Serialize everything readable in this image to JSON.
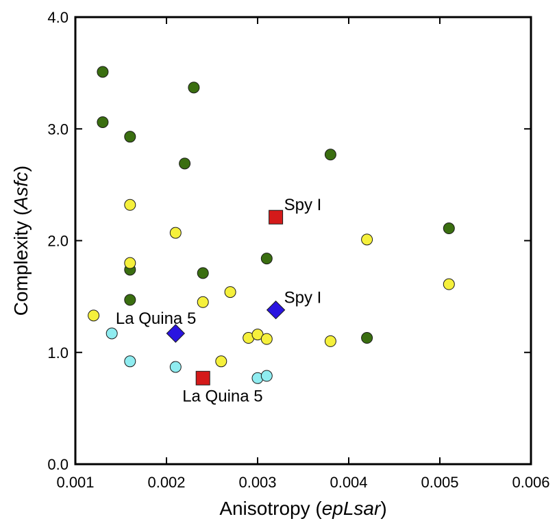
{
  "chart_data": {
    "type": "scatter",
    "xlabel_prefix": "Anisotropy  (",
    "xlabel_italic": "epLsar",
    "xlabel_suffix": ")",
    "ylabel_prefix": "Complexity (",
    "ylabel_italic": "Asfc",
    "ylabel_suffix": ")",
    "xlim": [
      0.001,
      0.006
    ],
    "ylim": [
      0.0,
      4.0
    ],
    "xticks": [
      "0.001",
      "0.002",
      "0.003",
      "0.004",
      "0.005",
      "0.006"
    ],
    "yticks": [
      "0.0",
      "1.0",
      "2.0",
      "3.0",
      "4.0"
    ],
    "grid": false,
    "colors": {
      "green": "#3a6e10",
      "yellow": "#f5f03c",
      "cyan": "#8fecf0",
      "red": "#d41a1a",
      "blue": "#2a14e0"
    },
    "series": [
      {
        "marker": "circle",
        "color": "#3a6e10",
        "points": [
          [
            0.0013,
            3.51
          ],
          [
            0.0013,
            3.06
          ],
          [
            0.0016,
            2.93
          ],
          [
            0.0023,
            3.37
          ],
          [
            0.0022,
            2.69
          ],
          [
            0.0038,
            2.77
          ],
          [
            0.0051,
            2.11
          ],
          [
            0.0031,
            1.84
          ],
          [
            0.0016,
            1.74
          ],
          [
            0.0024,
            1.71
          ],
          [
            0.0016,
            1.47
          ],
          [
            0.0042,
            1.13
          ]
        ]
      },
      {
        "marker": "circle",
        "color": "#f5f03c",
        "points": [
          [
            0.0016,
            2.32
          ],
          [
            0.0021,
            2.07
          ],
          [
            0.0042,
            2.01
          ],
          [
            0.0016,
            1.8
          ],
          [
            0.0051,
            1.61
          ],
          [
            0.0027,
            1.54
          ],
          [
            0.0024,
            1.45
          ],
          [
            0.0012,
            1.33
          ],
          [
            0.0029,
            1.13
          ],
          [
            0.003,
            1.16
          ],
          [
            0.0031,
            1.12
          ],
          [
            0.0038,
            1.1
          ],
          [
            0.0026,
            0.92
          ]
        ]
      },
      {
        "marker": "circle",
        "color": "#8fecf0",
        "points": [
          [
            0.0014,
            1.17
          ],
          [
            0.0016,
            0.92
          ],
          [
            0.0021,
            0.87
          ],
          [
            0.003,
            0.77
          ],
          [
            0.0031,
            0.79
          ]
        ]
      },
      {
        "marker": "square",
        "color": "#d41a1a",
        "points": [
          [
            0.0032,
            2.21
          ],
          [
            0.0024,
            0.77
          ]
        ]
      },
      {
        "marker": "diamond",
        "color": "#2a14e0",
        "points": [
          [
            0.0032,
            1.38
          ],
          [
            0.0021,
            1.17
          ]
        ]
      }
    ],
    "annotations": [
      {
        "text": "Spy I",
        "x": 0.0032,
        "y": 2.21,
        "anchor": "upper-right"
      },
      {
        "text": "Spy I",
        "x": 0.0032,
        "y": 1.38,
        "anchor": "upper-right"
      },
      {
        "text": "La Quina 5",
        "x": 0.0021,
        "y": 1.17,
        "anchor": "upper-left"
      },
      {
        "text": "La Quina 5",
        "x": 0.0024,
        "y": 0.77,
        "anchor": "lower-right"
      }
    ]
  }
}
